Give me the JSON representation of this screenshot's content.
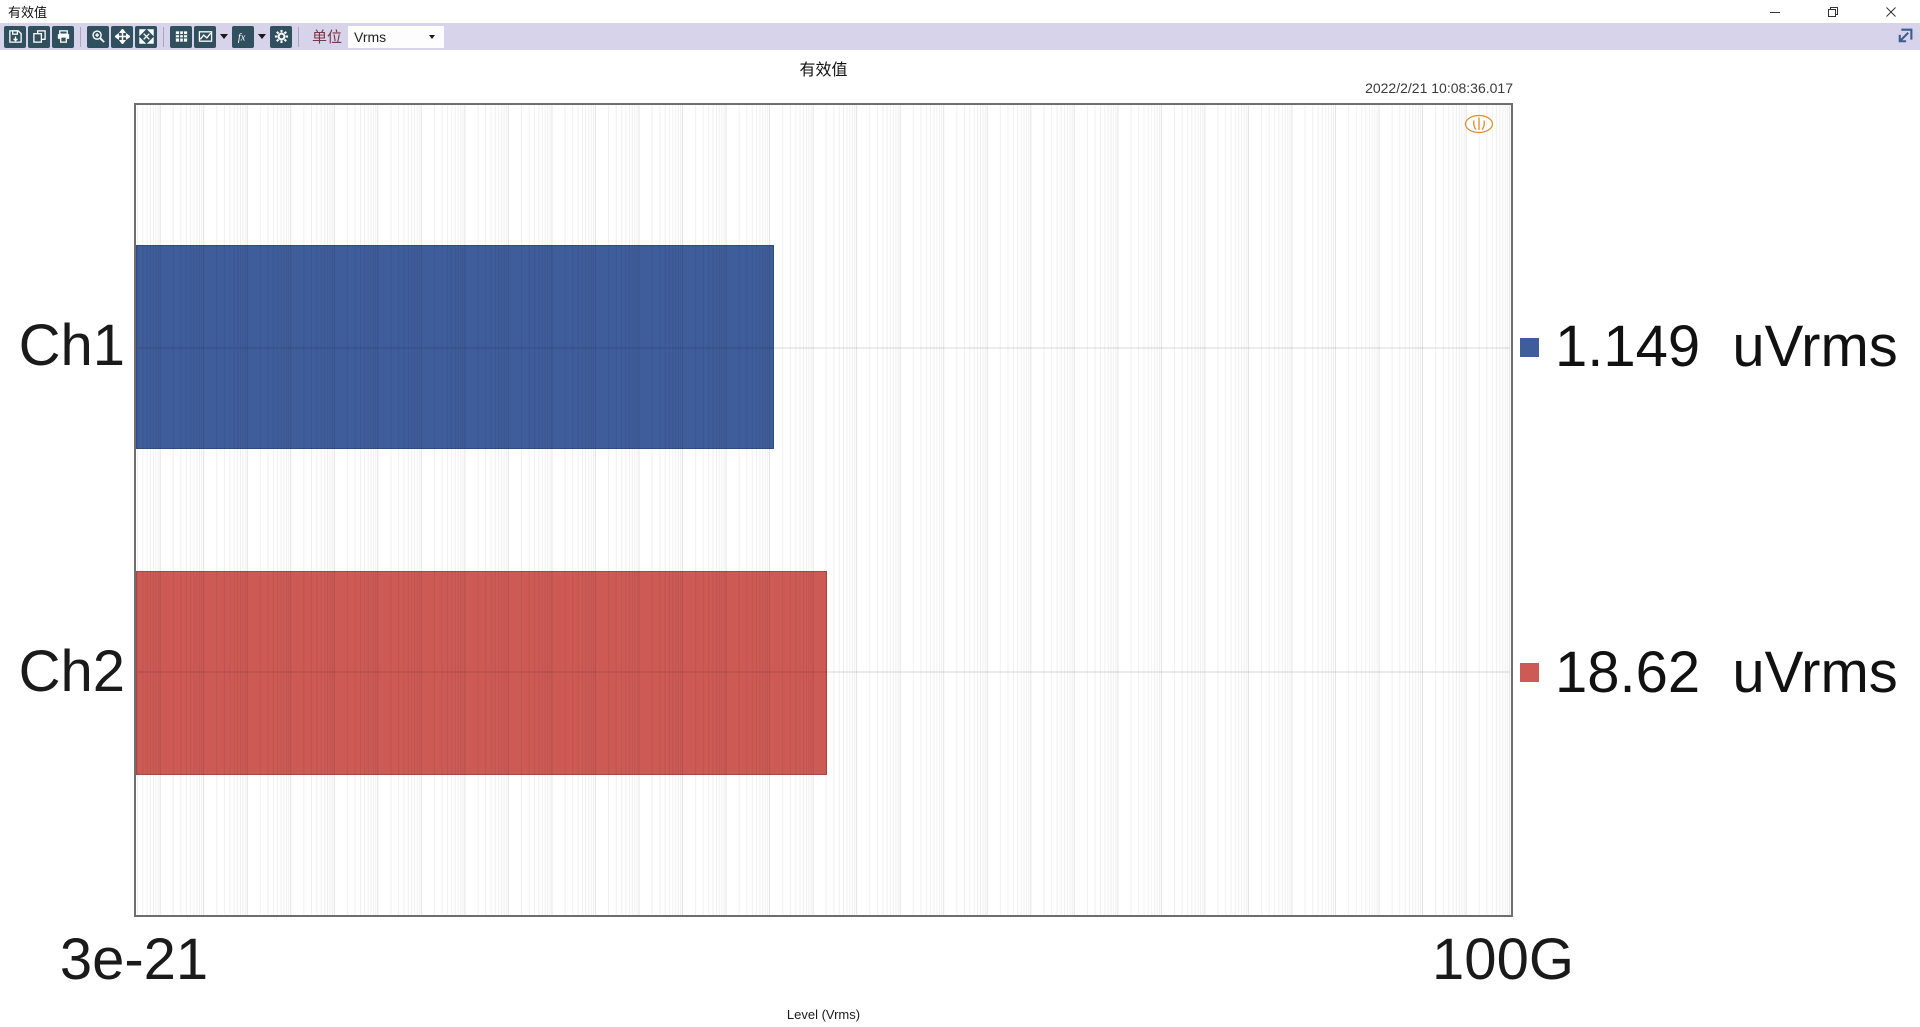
{
  "window": {
    "title": "有效值"
  },
  "toolbar": {
    "icons": [
      "save-icon",
      "copy-icon",
      "print-icon",
      "zoom-in-icon",
      "pan-icon",
      "fit-screen-icon",
      "table-icon",
      "chart-type-icon",
      "function-icon",
      "settings-icon"
    ],
    "unit_label": "单位",
    "unit_value": "Vrms",
    "dock_icon": "dock-panel-icon"
  },
  "chart_data": {
    "type": "bar",
    "orientation": "horizontal",
    "title": "有效值",
    "timestamp": "2022/2/21 10:08:36.017",
    "categories": [
      "Ch1",
      "Ch2"
    ],
    "values": [
      1.149e-06,
      1.862e-05
    ],
    "value_labels": [
      "1.149  uVrms",
      "18.62  uVrms"
    ],
    "series_colors": [
      "#3f5d9b",
      "#cd5a55"
    ],
    "xlabel": "Level (Vrms)",
    "x_scale": "log",
    "xlim": [
      3e-21,
      100000000000.0
    ],
    "x_tick_labels": [
      "3e-21",
      "100G"
    ],
    "grid": {
      "vertical": "log-minor",
      "horizontal": "category-centers"
    },
    "legend_position": "right",
    "logo_color": "#dd8f2e"
  }
}
